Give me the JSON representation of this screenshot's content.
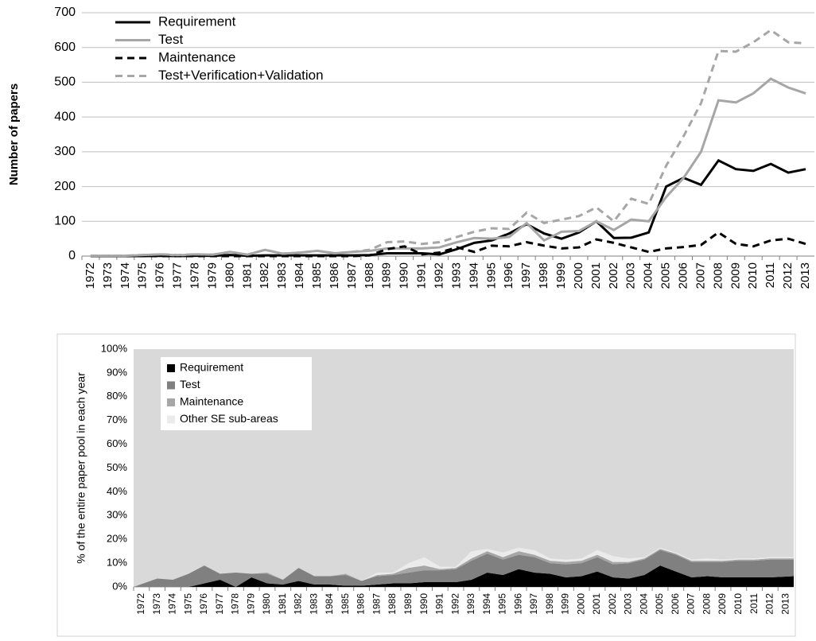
{
  "chart_data": [
    {
      "type": "line",
      "ylabel": "Number of papers",
      "categories": [
        "1972",
        "1973",
        "1974",
        "1975",
        "1976",
        "1977",
        "1978",
        "1979",
        "1980",
        "1981",
        "1982",
        "1983",
        "1984",
        "1985",
        "1986",
        "1987",
        "1988",
        "1989",
        "1990",
        "1991",
        "1992",
        "1993",
        "1994",
        "1995",
        "1996",
        "1997",
        "1998",
        "1999",
        "2000",
        "2001",
        "2002",
        "2003",
        "2004",
        "2005",
        "2006",
        "2007",
        "2008",
        "2009",
        "2010",
        "2011",
        "2012",
        "2013"
      ],
      "ylim": [
        0,
        700
      ],
      "yticks": [
        0,
        100,
        200,
        300,
        400,
        500,
        600,
        700
      ],
      "grid": true,
      "legend": "upper left",
      "series": [
        {
          "name": "Requirement",
          "color": "#000000",
          "dash": false,
          "values": [
            0,
            0,
            0,
            0,
            1,
            0,
            1,
            1,
            3,
            1,
            2,
            2,
            2,
            2,
            2,
            2,
            3,
            8,
            8,
            8,
            5,
            20,
            38,
            45,
            65,
            92,
            65,
            50,
            68,
            100,
            52,
            53,
            68,
            200,
            225,
            205,
            275,
            250,
            245,
            265,
            240,
            250
          ]
        },
        {
          "name": "Test",
          "color": "#a6a6a6",
          "dash": false,
          "values": [
            1,
            1,
            1,
            3,
            5,
            2,
            5,
            4,
            12,
            4,
            18,
            7,
            10,
            15,
            8,
            12,
            15,
            22,
            22,
            22,
            25,
            40,
            52,
            50,
            55,
            95,
            45,
            70,
            72,
            100,
            75,
            105,
            100,
            170,
            225,
            300,
            448,
            442,
            468,
            510,
            485,
            468
          ]
        },
        {
          "name": "Maintenance",
          "color": "#000000",
          "dash": true,
          "values": [
            0,
            0,
            0,
            0,
            0,
            0,
            0,
            0,
            0,
            0,
            0,
            0,
            0,
            0,
            0,
            0,
            2,
            20,
            28,
            5,
            10,
            25,
            12,
            30,
            28,
            40,
            30,
            22,
            25,
            48,
            38,
            25,
            12,
            22,
            26,
            32,
            68,
            35,
            28,
            45,
            50,
            35
          ]
        },
        {
          "name": "Test+Verification+Validation",
          "color": "#a6a6a6",
          "dash": true,
          "values": [
            1,
            1,
            1,
            3,
            5,
            3,
            5,
            4,
            12,
            4,
            18,
            7,
            10,
            15,
            8,
            12,
            18,
            40,
            42,
            35,
            40,
            55,
            70,
            80,
            78,
            125,
            95,
            105,
            115,
            140,
            100,
            165,
            150,
            260,
            345,
            440,
            590,
            588,
            615,
            650,
            615,
            612
          ]
        }
      ]
    },
    {
      "type": "stacked_area",
      "ylabel": "% of the entire paper pool in each year",
      "categories": [
        "1972",
        "1973",
        "1974",
        "1975",
        "1976",
        "1977",
        "1978",
        "1979",
        "1980",
        "1981",
        "1982",
        "1983",
        "1984",
        "1985",
        "1986",
        "1987",
        "1988",
        "1989",
        "1990",
        "1991",
        "1992",
        "1993",
        "1994",
        "1995",
        "1996",
        "1997",
        "1998",
        "1999",
        "2000",
        "2001",
        "2002",
        "2003",
        "2004",
        "2005",
        "2006",
        "2007",
        "2008",
        "2009",
        "2010",
        "2011",
        "2012",
        "2013"
      ],
      "ylim": [
        0,
        100
      ],
      "yticks": [
        {
          "value": 0,
          "label": "0%"
        },
        {
          "value": 10,
          "label": "10%"
        },
        {
          "value": 20,
          "label": "20%"
        },
        {
          "value": 30,
          "label": "30%"
        },
        {
          "value": 40,
          "label": "40%"
        },
        {
          "value": 50,
          "label": "50%"
        },
        {
          "value": 60,
          "label": "60%"
        },
        {
          "value": 70,
          "label": "70%"
        },
        {
          "value": 80,
          "label": "80%"
        },
        {
          "value": 90,
          "label": "90%"
        },
        {
          "value": 100,
          "label": "100%"
        }
      ],
      "grid": false,
      "legend": "upper left",
      "background": "#d9d9d9",
      "series": [
        {
          "name": "Requirement",
          "color": "#000000",
          "values": [
            0,
            0,
            0,
            0,
            1.5,
            3,
            0,
            4,
            1.5,
            1,
            2.5,
            1,
            1,
            0.5,
            0.5,
            1,
            1.5,
            1.5,
            2,
            2,
            2,
            3,
            6,
            5,
            7.5,
            6,
            5.5,
            4,
            4.5,
            6.5,
            4,
            3.5,
            5,
            9,
            6.5,
            4,
            4.5,
            4,
            4,
            4,
            4,
            4.5
          ]
        },
        {
          "name": "Test",
          "color": "#808080",
          "values": [
            0,
            3.5,
            3,
            5.5,
            7.5,
            2.5,
            6,
            1.5,
            4,
            2,
            5.5,
            3.5,
            3.5,
            4.5,
            2,
            3.5,
            3.5,
            4.5,
            5,
            5,
            5.5,
            8,
            8,
            6.5,
            6,
            6.5,
            4.5,
            5.5,
            5.5,
            6,
            5.5,
            6.5,
            6.5,
            6.5,
            7,
            6.5,
            6,
            6.5,
            7,
            7,
            7.5,
            7
          ]
        },
        {
          "name": "Maintenance",
          "color": "#a6a6a6",
          "values": [
            0,
            0,
            0,
            0,
            0,
            0,
            0,
            0,
            0.5,
            0,
            0,
            0,
            0,
            0.5,
            0,
            0.5,
            0.5,
            2,
            2,
            0.5,
            0.5,
            1,
            1,
            1,
            1.5,
            1,
            1,
            1,
            1,
            1,
            1,
            0.5,
            0.5,
            0.5,
            0.5,
            0.5,
            0.5,
            0.5,
            0.5,
            0.5,
            0.5,
            0.5
          ]
        },
        {
          "name": "Other SE sub-areas",
          "color": "#ebebeb",
          "values": [
            0,
            0,
            0,
            0,
            0,
            0,
            0,
            0,
            0,
            0,
            0,
            0,
            0,
            0,
            0,
            1,
            0.5,
            2,
            3.5,
            1,
            0.5,
            3,
            1,
            2,
            1.5,
            2,
            1,
            1,
            1,
            2,
            2.5,
            1.5,
            0.5,
            0.5,
            0.5,
            0.5,
            1,
            0.5,
            0.5,
            0.5,
            0.5,
            0.5
          ]
        }
      ]
    }
  ]
}
